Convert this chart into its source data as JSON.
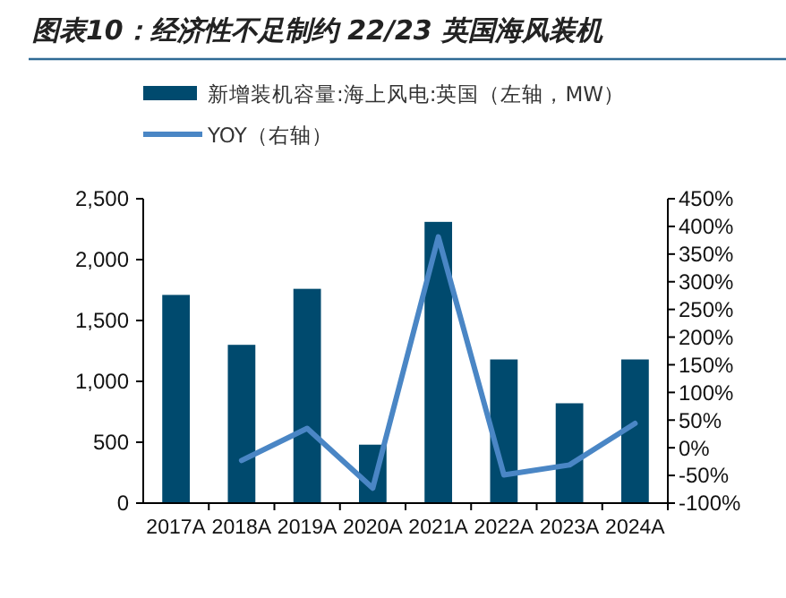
{
  "chart_data": {
    "type": "bar",
    "title": "图表10：经济性不足制约 22/23 英国海风装机",
    "categories": [
      "2017A",
      "2018A",
      "2019A",
      "2020A",
      "2021A",
      "2022A",
      "2023A",
      "2024A"
    ],
    "series": [
      {
        "name": "新增装机容量:海上风电:英国（左轴，MW）",
        "color": "#004a6e",
        "values": [
          1710,
          1300,
          1760,
          480,
          2310,
          1180,
          820,
          1180
        ]
      },
      {
        "name": "YOY（右轴）",
        "type": "line",
        "axis": "y2",
        "color": "#4a86c5",
        "values": [
          null,
          -23,
          35,
          -73,
          381,
          -49,
          -31,
          44
        ]
      }
    ],
    "ylim": [
      0,
      2500
    ],
    "yticks": [
      0,
      {
        "value": 500,
        "label": "500"
      },
      {
        "value": 1000,
        "label": "1,000"
      },
      {
        "value": 1500,
        "label": "1,500"
      },
      {
        "value": 2000,
        "label": "2,000"
      },
      {
        "value": 2500,
        "label": "2,500"
      }
    ],
    "y2lim": [
      -100,
      450
    ],
    "y2ticks": [
      {
        "value": -100,
        "label": "-100%"
      },
      {
        "value": -50,
        "label": "-50%"
      },
      {
        "value": 0,
        "label": "0%"
      },
      {
        "value": 50,
        "label": "50%"
      },
      {
        "value": 100,
        "label": "100%"
      },
      {
        "value": 150,
        "label": "150%"
      },
      {
        "value": 200,
        "label": "200%"
      },
      {
        "value": 250,
        "label": "250%"
      },
      {
        "value": 300,
        "label": "300%"
      },
      {
        "value": 350,
        "label": "350%"
      },
      {
        "value": 400,
        "label": "400%"
      },
      {
        "value": 450,
        "label": "450%"
      }
    ],
    "legend": "top",
    "grid": false
  }
}
